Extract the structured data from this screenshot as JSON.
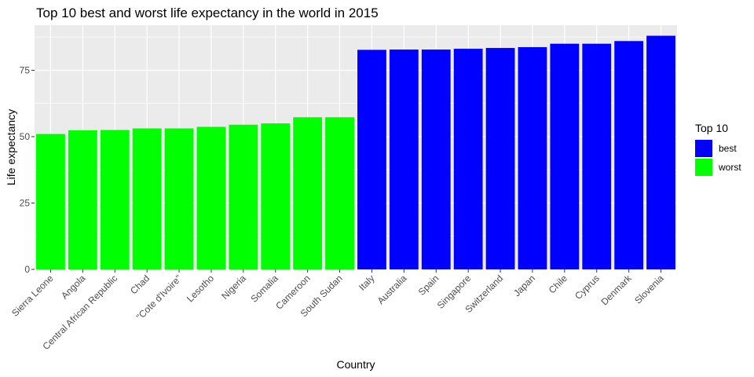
{
  "chart_data": {
    "type": "bar",
    "title": "Top 10 best and worst life expectancy in the world in 2015",
    "xlabel": "Country",
    "ylabel": "Life expectancy",
    "ylim": [
      0,
      92
    ],
    "yticks": [
      0,
      25,
      50,
      75
    ],
    "grid": true,
    "legend_position": "right",
    "legend_title": "Top 10",
    "series": [
      {
        "name": "best",
        "color": "#0000FF"
      },
      {
        "name": "worst",
        "color": "#00FF00"
      }
    ],
    "categories": [
      "Sierra Leone",
      "Angola",
      "Central African Republic",
      "Chad",
      "\"Cote d'Ivoire\"",
      "Lesotho",
      "Nigeria",
      "Somalia",
      "Cameroon",
      "South Sudan",
      "Italy",
      "Australia",
      "Spain",
      "Singapore",
      "Switzerland",
      "Japan",
      "Chile",
      "Cyprus",
      "Denmark",
      "Slovenia"
    ],
    "values": [
      51.0,
      52.4,
      52.5,
      53.1,
      53.1,
      53.7,
      54.5,
      55.0,
      57.3,
      57.3,
      82.7,
      82.8,
      82.8,
      83.1,
      83.4,
      83.7,
      85.0,
      85.0,
      86.0,
      88.0
    ],
    "groups": [
      "worst",
      "worst",
      "worst",
      "worst",
      "worst",
      "worst",
      "worst",
      "worst",
      "worst",
      "worst",
      "best",
      "best",
      "best",
      "best",
      "best",
      "best",
      "best",
      "best",
      "best",
      "best"
    ]
  }
}
